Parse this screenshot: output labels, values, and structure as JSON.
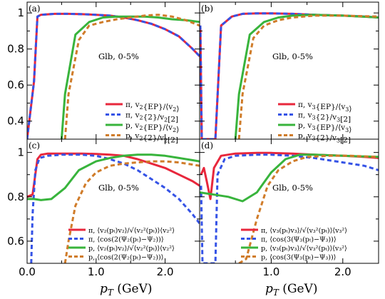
{
  "chart_data": [
    {
      "panel": "(a)",
      "type": "line",
      "xlim": [
        0,
        2.5
      ],
      "ylim": [
        0.3,
        1.06
      ],
      "yticks": [
        "1",
        "0.8",
        "0.6",
        "0.4"
      ],
      "annotation": "Glb, 0-5%",
      "legend_position": "lower-right",
      "series": [
        {
          "name": "π, v2{EP}/⟨v2⟩",
          "color": "#e8273c",
          "style": "solid",
          "x": [
            0,
            0.1,
            0.15,
            0.2,
            0.4,
            0.6,
            0.8,
            1.0,
            1.2,
            1.4,
            1.6,
            1.8,
            2.0,
            2.2,
            2.4,
            2.5
          ],
          "y": [
            0.3,
            0.62,
            0.98,
            0.99,
            0.995,
            0.995,
            0.993,
            0.99,
            0.985,
            0.975,
            0.96,
            0.94,
            0.91,
            0.87,
            0.8,
            0.76
          ]
        },
        {
          "name": "π, v2{2}/v2[2]",
          "color": "#3553e6",
          "style": "dashed",
          "x": [
            0,
            0.1,
            0.15,
            0.2,
            0.4,
            0.6,
            0.8,
            1.0,
            1.2,
            1.4,
            1.6,
            1.8,
            2.0,
            2.2,
            2.4,
            2.5
          ],
          "y": [
            0.3,
            0.62,
            0.98,
            0.99,
            0.995,
            0.995,
            0.993,
            0.99,
            0.985,
            0.975,
            0.96,
            0.94,
            0.91,
            0.87,
            0.8,
            0.76
          ]
        },
        {
          "name": "p, v2{EP}/⟨v2⟩",
          "color": "#38b43c",
          "style": "solid",
          "x": [
            0.5,
            0.55,
            0.7,
            0.9,
            1.1,
            1.3,
            1.5,
            1.7,
            1.9,
            2.1,
            2.3,
            2.5
          ],
          "y": [
            0.3,
            0.55,
            0.88,
            0.95,
            0.975,
            0.98,
            0.98,
            0.98,
            0.975,
            0.965,
            0.96,
            0.95
          ]
        },
        {
          "name": "p, v2{2}/v2[2]",
          "color": "#d07c2a",
          "style": "dashed",
          "x": [
            0.55,
            0.6,
            0.75,
            0.9,
            1.1,
            1.3,
            1.5,
            1.7,
            1.9,
            2.1,
            2.3,
            2.5
          ],
          "y": [
            0.3,
            0.55,
            0.85,
            0.93,
            0.95,
            0.965,
            0.975,
            0.985,
            0.99,
            0.98,
            0.96,
            0.93
          ]
        }
      ]
    },
    {
      "panel": "(b)",
      "type": "line",
      "xlim": [
        0,
        2.5
      ],
      "ylim": [
        0.3,
        1.06
      ],
      "annotation": "Glb, 0-5%",
      "legend_position": "lower-right",
      "series": [
        {
          "name": "π, v3{EP}/⟨v3⟩",
          "color": "#e8273c",
          "style": "solid",
          "x": [
            0.01,
            0.03,
            0.05,
            0.08,
            0.12,
            0.18,
            0.22,
            0.3,
            0.45,
            0.6,
            0.8,
            1.0,
            1.3,
            1.6,
            2.0,
            2.3,
            2.5
          ],
          "y": [
            0.93,
            0.3,
            0.3,
            0.3,
            0.3,
            0.3,
            0.3,
            0.93,
            0.98,
            0.995,
            0.998,
            0.998,
            0.995,
            0.99,
            0.985,
            0.98,
            0.975
          ]
        },
        {
          "name": "π, v3{2}/v3[2]",
          "color": "#3553e6",
          "style": "dashed",
          "x": [
            0.01,
            0.03,
            0.05,
            0.08,
            0.12,
            0.18,
            0.22,
            0.3,
            0.45,
            0.6,
            0.8,
            1.0,
            1.3,
            1.6,
            2.0,
            2.3,
            2.5
          ],
          "y": [
            0.93,
            0.3,
            0.3,
            0.3,
            0.3,
            0.3,
            0.3,
            0.93,
            0.98,
            0.995,
            0.998,
            0.998,
            0.995,
            0.99,
            0.985,
            0.98,
            0.975
          ]
        },
        {
          "name": "p, v3{EP}/⟨v3⟩",
          "color": "#38b43c",
          "style": "solid",
          "x": [
            0.5,
            0.55,
            0.7,
            0.9,
            1.1,
            1.3,
            1.6,
            2.0,
            2.5
          ],
          "y": [
            0.3,
            0.55,
            0.88,
            0.95,
            0.975,
            0.985,
            0.99,
            0.985,
            0.975
          ]
        },
        {
          "name": "p, v3{2}/v3[2]",
          "color": "#d07c2a",
          "style": "dashed",
          "x": [
            0.55,
            0.6,
            0.75,
            0.9,
            1.1,
            1.3,
            1.6,
            2.0,
            2.5
          ],
          "y": [
            0.3,
            0.55,
            0.86,
            0.93,
            0.96,
            0.975,
            0.985,
            0.985,
            0.98
          ]
        }
      ]
    },
    {
      "panel": "(c)",
      "type": "line",
      "xlim": [
        0,
        2.5
      ],
      "xticks": [
        "0.0",
        "1.0",
        "2.0"
      ],
      "ylim": [
        0.5,
        1.06
      ],
      "yticks": [
        "1",
        "0.8",
        "0.6"
      ],
      "annotation": "Glb, 0-5%",
      "legend_position": "lower-right",
      "series": [
        {
          "name": "π, ⟨v2(pT)v2⟩/√⟨v2²(pT)⟩⟨v2²⟩",
          "color": "#e8273c",
          "style": "solid",
          "x": [
            0,
            0.08,
            0.15,
            0.2,
            0.3,
            0.5,
            0.8,
            1.0,
            1.2,
            1.4,
            1.6,
            1.8,
            2.0,
            2.2,
            2.4,
            2.5
          ],
          "y": [
            0.8,
            0.81,
            0.97,
            0.99,
            0.995,
            0.995,
            0.995,
            0.993,
            0.99,
            0.985,
            0.97,
            0.95,
            0.93,
            0.9,
            0.87,
            0.85
          ]
        },
        {
          "name": "π, ⟨cos(2(Ψ2(pT)−Ψ2))⟩",
          "color": "#3553e6",
          "style": "dashed",
          "x": [
            0.06,
            0.08,
            0.12,
            0.18,
            0.3,
            0.5,
            0.8,
            1.0,
            1.2,
            1.4,
            1.6,
            1.8,
            2.0,
            2.2,
            2.4,
            2.5
          ],
          "y": [
            0.5,
            0.72,
            0.92,
            0.975,
            0.985,
            0.99,
            0.99,
            0.985,
            0.97,
            0.95,
            0.92,
            0.88,
            0.84,
            0.79,
            0.72,
            0.68
          ]
        },
        {
          "name": "p, ⟨v2(pT)v2⟩/√⟨v2²(pT)⟩⟨v2²⟩",
          "color": "#38b43c",
          "style": "solid",
          "x": [
            0,
            0.1,
            0.2,
            0.35,
            0.55,
            0.75,
            1.0,
            1.2,
            1.4,
            1.6,
            1.8,
            2.0,
            2.2,
            2.4,
            2.5
          ],
          "y": [
            0.79,
            0.79,
            0.785,
            0.79,
            0.84,
            0.92,
            0.96,
            0.975,
            0.985,
            0.99,
            0.99,
            0.985,
            0.975,
            0.965,
            0.96
          ]
        },
        {
          "name": "p, ⟨cos(2(Ψ2(pT)−Ψ2))⟩",
          "color": "#d07c2a",
          "style": "dashed",
          "x": [
            0.55,
            0.6,
            0.7,
            0.85,
            1.0,
            1.2,
            1.4,
            1.6,
            1.8,
            2.0,
            2.2,
            2.4,
            2.5
          ],
          "y": [
            0.5,
            0.6,
            0.76,
            0.86,
            0.91,
            0.94,
            0.95,
            0.955,
            0.96,
            0.96,
            0.955,
            0.945,
            0.94
          ]
        }
      ]
    },
    {
      "panel": "(d)",
      "type": "line",
      "xlim": [
        0,
        2.5
      ],
      "xticks": [
        "1.0",
        "2.0"
      ],
      "ylim": [
        0.5,
        1.06
      ],
      "annotation": "Glb, 0-5%",
      "legend_position": "lower-right",
      "series": [
        {
          "name": "π, ⟨v3(pT)v3⟩/√⟨v3²(pT)⟩⟨v3²⟩",
          "color": "#e8273c",
          "style": "solid",
          "x": [
            0.02,
            0.06,
            0.1,
            0.15,
            0.2,
            0.3,
            0.5,
            0.8,
            1.0,
            1.3,
            1.6,
            2.0,
            2.3,
            2.5
          ],
          "y": [
            0.9,
            0.93,
            0.87,
            0.79,
            0.93,
            0.985,
            0.995,
            0.998,
            0.998,
            0.995,
            0.99,
            0.985,
            0.98,
            0.975
          ]
        },
        {
          "name": "π, ⟨cos(3(Ψ3(pT)−Ψ3))⟩",
          "color": "#3553e6",
          "style": "dashed",
          "x": [
            0.02,
            0.04,
            0.06,
            0.15,
            0.22,
            0.25,
            0.35,
            0.5,
            0.8,
            1.0,
            1.3,
            1.6,
            2.0,
            2.3,
            2.5
          ],
          "y": [
            0.85,
            0.5,
            0.5,
            0.5,
            0.5,
            0.9,
            0.97,
            0.985,
            0.99,
            0.99,
            0.985,
            0.975,
            0.955,
            0.94,
            0.92
          ]
        },
        {
          "name": "p, ⟨v3(pT)v3⟩/√⟨v3²(pT)⟩⟨v3²⟩",
          "color": "#38b43c",
          "style": "solid",
          "x": [
            0,
            0.2,
            0.4,
            0.6,
            0.8,
            1.0,
            1.2,
            1.4,
            1.6,
            2.0,
            2.5
          ],
          "y": [
            0.82,
            0.81,
            0.8,
            0.78,
            0.82,
            0.91,
            0.97,
            0.99,
            0.99,
            0.985,
            0.98
          ]
        },
        {
          "name": "p, ⟨cos(3(Ψ3(pT)−Ψ3))⟩",
          "color": "#d07c2a",
          "style": "dashed",
          "x": [
            0.55,
            0.65,
            0.8,
            0.95,
            1.1,
            1.3,
            1.5,
            1.8,
            2.1,
            2.5
          ],
          "y": [
            0.5,
            0.52,
            0.7,
            0.85,
            0.92,
            0.96,
            0.98,
            0.985,
            0.985,
            0.98
          ]
        }
      ]
    }
  ],
  "legend_text": {
    "a": [
      {
        "pre": "π, v",
        "sub": "2",
        "post": "{EP}/⟨v",
        "sub2": "2",
        "post2": "⟩"
      },
      {
        "pre": "π, v",
        "sub": "2",
        "post": "{2}/v",
        "sub2": "2",
        "post2": "[2]"
      },
      {
        "pre": "p, v",
        "sub": "2",
        "post": "{EP}/⟨v",
        "sub2": "2",
        "post2": "⟩"
      },
      {
        "pre": "p, v",
        "sub": "2",
        "post": "{2}/v",
        "sub2": "2",
        "post2": "[2]"
      }
    ],
    "b": [
      {
        "pre": "π, v",
        "sub": "3",
        "post": "{EP}/⟨v",
        "sub2": "3",
        "post2": "⟩"
      },
      {
        "pre": "π, v",
        "sub": "3",
        "post": "{2}/v",
        "sub2": "3",
        "post2": "[2]"
      },
      {
        "pre": "p, v",
        "sub": "3",
        "post": "{EP}/⟨v",
        "sub2": "3",
        "post2": "⟩"
      },
      {
        "pre": "p, v",
        "sub": "3",
        "post": "{2}/v",
        "sub2": "3",
        "post2": "[2]"
      }
    ],
    "c": [
      "π, ⟨v₂(pₜ)v₂⟩/√⟨v₂²(pₜ)⟩⟨v₂²⟩",
      "π, ⟨cos(2(Ψ₂(pₜ)−Ψ₂))⟩",
      "p, ⟨v₂(pₜ)v₂⟩/√⟨v₂²(pₜ)⟩⟨v₂²⟩",
      "p, ⟨cos(2(Ψ₂(pₜ)−Ψ₂))⟩"
    ],
    "d": [
      "π, ⟨v₃(pₜ)v₃⟩/√⟨v₃²(pₜ)⟩⟨v₃²⟩",
      "π, ⟨cos(3(Ψ₃(pₜ)−Ψ₃))⟩",
      "p, ⟨v₃(pₜ)v₃⟩/√⟨v₃²(pₜ)⟩⟨v₃²⟩",
      "p, ⟨cos(3(Ψ₃(pₜ)−Ψ₃))⟩"
    ]
  },
  "xlabel": {
    "main": "p",
    "sub": "T",
    "unit": " (GeV)"
  }
}
